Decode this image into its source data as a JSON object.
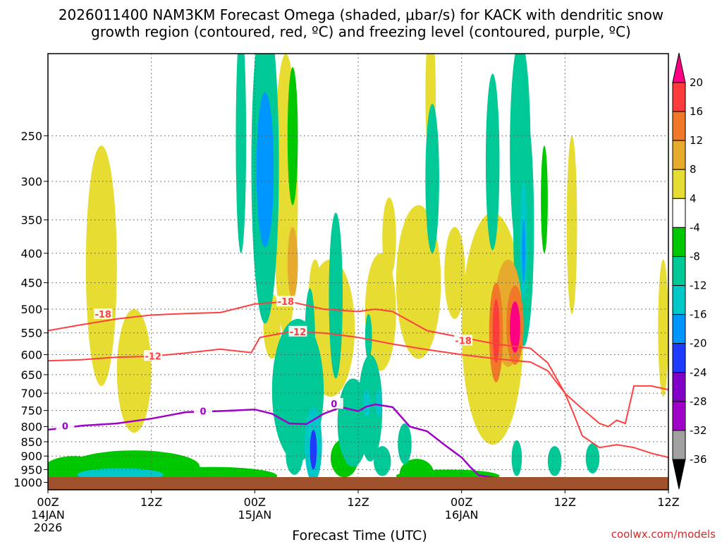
{
  "chart_data": {
    "type": "time-height cross section",
    "title_line1": "2026011400 NAM3KM Forecast Omega (shaded, μbar/s) for KACK with dendritic snow",
    "title_line2": "growth region (contoured, red, ºC) and freezing level (contoured, purple, ºC)",
    "xlabel": "Forecast Time (UTC)",
    "x_unit": "hours",
    "x_range": [
      0,
      36
    ],
    "y_unit": "hPa",
    "y_range": [
      1030,
      180
    ],
    "y_ticks": [
      "250",
      "300",
      "350",
      "400",
      "450",
      "500",
      "550",
      "600",
      "650",
      "700",
      "750",
      "800",
      "850",
      "900",
      "950",
      "1000"
    ],
    "x_ticks": [
      {
        "h": 0,
        "line1": "00Z",
        "line2": "14JAN",
        "line3": "2026"
      },
      {
        "h": 6,
        "line1": "12Z",
        "line2": "",
        "line3": ""
      },
      {
        "h": 12,
        "line1": "00Z",
        "line2": "15JAN",
        "line3": ""
      },
      {
        "h": 18,
        "line1": "12Z",
        "line2": "",
        "line3": ""
      },
      {
        "h": 24,
        "line1": "00Z",
        "line2": "16JAN",
        "line3": ""
      },
      {
        "h": 30,
        "line1": "12Z",
        "line2": "",
        "line3": ""
      }
    ],
    "colorbar": {
      "labels": [
        "20",
        "16",
        "12",
        "8",
        "4",
        "-4",
        "-8",
        "-12",
        "-16",
        "-20",
        "-24",
        "-28",
        "-32",
        "-36"
      ],
      "colors": [
        "#ff0080",
        "#ff3c3c",
        "#f07828",
        "#e6aa2d",
        "#e6dc32",
        "#ffffff",
        "#00c800",
        "#00c896",
        "#00c8c8",
        "#0096ff",
        "#1e3cff",
        "#8200c8",
        "#a000c8",
        "#a0a0a0",
        "#000000"
      ]
    },
    "contour_labels": {
      "dgz_minus18": "-18",
      "dgz_minus12": "-12",
      "freezing": "0"
    },
    "dgz_minus18": [
      [
        0,
        545
      ],
      [
        2,
        532
      ],
      [
        4,
        520
      ],
      [
        6,
        512
      ],
      [
        8,
        509
      ],
      [
        10,
        507
      ],
      [
        12,
        490
      ],
      [
        14,
        485
      ],
      [
        16,
        500
      ],
      [
        18,
        505
      ],
      [
        19,
        500
      ],
      [
        20,
        505
      ],
      [
        22,
        545
      ],
      [
        24,
        560
      ],
      [
        26,
        575
      ],
      [
        28,
        585
      ],
      [
        29,
        620
      ],
      [
        30,
        700
      ],
      [
        31,
        745
      ],
      [
        32,
        790
      ],
      [
        32.5,
        800
      ],
      [
        33,
        780
      ],
      [
        33.5,
        790
      ],
      [
        34,
        680
      ],
      [
        35,
        680
      ],
      [
        36,
        690
      ]
    ],
    "dgz_minus12": [
      [
        0,
        615
      ],
      [
        2,
        612
      ],
      [
        4,
        606
      ],
      [
        6,
        604
      ],
      [
        8,
        596
      ],
      [
        10,
        587
      ],
      [
        11.8,
        595
      ],
      [
        12.3,
        560
      ],
      [
        14,
        548
      ],
      [
        16,
        550
      ],
      [
        18,
        560
      ],
      [
        20,
        575
      ],
      [
        22,
        588
      ],
      [
        24,
        600
      ],
      [
        26,
        610
      ],
      [
        28,
        618
      ],
      [
        29,
        640
      ],
      [
        30,
        700
      ],
      [
        30.5,
        760
      ],
      [
        31,
        830
      ],
      [
        32,
        870
      ],
      [
        33,
        860
      ],
      [
        34,
        870
      ],
      [
        35,
        890
      ],
      [
        36,
        905
      ]
    ],
    "freezing_0c": [
      [
        0,
        810
      ],
      [
        2,
        797
      ],
      [
        4,
        790
      ],
      [
        6,
        775
      ],
      [
        8,
        755
      ],
      [
        10,
        752
      ],
      [
        12,
        747
      ],
      [
        13,
        760
      ],
      [
        14,
        790
      ],
      [
        15,
        792
      ],
      [
        16,
        760
      ],
      [
        17,
        740
      ],
      [
        18,
        752
      ],
      [
        18.5,
        738
      ],
      [
        19,
        732
      ],
      [
        20,
        740
      ],
      [
        21,
        800
      ],
      [
        22,
        815
      ],
      [
        23,
        860
      ],
      [
        24,
        905
      ],
      [
        24.5,
        940
      ],
      [
        25,
        972
      ],
      [
        27,
        992
      ]
    ],
    "omega_blobs": [
      {
        "h": 12.6,
        "p": 300,
        "dh": 0.8,
        "dp": 230,
        "v": -10
      },
      {
        "h": 12.6,
        "p": 300,
        "dh": 0.5,
        "dp": 90,
        "v": -17
      },
      {
        "h": 11.2,
        "p": 280,
        "dh": 0.3,
        "dp": 120,
        "v": -8
      },
      {
        "h": 13.8,
        "p": 370,
        "dh": 0.7,
        "dp": 190,
        "v": 5
      },
      {
        "h": 14.2,
        "p": 420,
        "dh": 0.3,
        "dp": 60,
        "v": 9
      },
      {
        "h": 14.2,
        "p": 260,
        "dh": 0.3,
        "dp": 70,
        "v": -6
      },
      {
        "h": 3.1,
        "p": 470,
        "dh": 0.9,
        "dp": 210,
        "v": 5
      },
      {
        "h": 5,
        "p": 660,
        "dh": 1,
        "dp": 160,
        "v": 5
      },
      {
        "h": 13,
        "p": 540,
        "dh": 0.5,
        "dp": 70,
        "v": 7
      },
      {
        "h": 15.5,
        "p": 500,
        "dh": 0.4,
        "dp": 90,
        "v": 6
      },
      {
        "h": 16.4,
        "p": 560,
        "dh": 1.4,
        "dp": 150,
        "v": 5
      },
      {
        "h": 19.3,
        "p": 520,
        "dh": 0.9,
        "dp": 120,
        "v": 6
      },
      {
        "h": 21.5,
        "p": 470,
        "dh": 1.3,
        "dp": 140,
        "v": 5
      },
      {
        "h": 23.6,
        "p": 440,
        "dh": 0.6,
        "dp": 80,
        "v": 5
      },
      {
        "h": 25.8,
        "p": 600,
        "dh": 1.8,
        "dp": 260,
        "v": 5
      },
      {
        "h": 26,
        "p": 560,
        "dh": 0.4,
        "dp": 110,
        "v": 14
      },
      {
        "h": 26,
        "p": 550,
        "dh": 0.2,
        "dp": 70,
        "v": 19
      },
      {
        "h": 26.7,
        "p": 520,
        "dh": 0.8,
        "dp": 110,
        "v": 9
      },
      {
        "h": 27.1,
        "p": 540,
        "dh": 0.5,
        "dp": 85,
        "v": 13
      },
      {
        "h": 27.1,
        "p": 540,
        "dh": 0.3,
        "dp": 55,
        "v": 20
      },
      {
        "h": 22.2,
        "p": 220,
        "dh": 0.3,
        "dp": 60,
        "v": 5
      },
      {
        "h": 26.1,
        "p": 620,
        "dh": 0.2,
        "dp": 20,
        "v": 14
      },
      {
        "h": 30.4,
        "p": 380,
        "dh": 0.3,
        "dp": 130,
        "v": 5
      },
      {
        "h": 19.8,
        "p": 380,
        "dh": 0.4,
        "dp": 60,
        "v": 5
      },
      {
        "h": 35.7,
        "p": 560,
        "dh": 0.3,
        "dp": 150,
        "v": 5
      },
      {
        "h": 14.5,
        "p": 720,
        "dh": 1.5,
        "dp": 200,
        "v": -8
      },
      {
        "h": 15.4,
        "p": 870,
        "dh": 0.5,
        "dp": 130,
        "v": -12
      },
      {
        "h": 15.4,
        "p": 880,
        "dh": 0.2,
        "dp": 70,
        "v": -20
      },
      {
        "h": 14.3,
        "p": 900,
        "dh": 0.5,
        "dp": 70,
        "v": -11
      },
      {
        "h": 15.2,
        "p": 580,
        "dh": 0.3,
        "dp": 120,
        "v": -8
      },
      {
        "h": 16.7,
        "p": 500,
        "dh": 0.4,
        "dp": 160,
        "v": -8
      },
      {
        "h": 17.7,
        "p": 800,
        "dh": 0.9,
        "dp": 140,
        "v": -8
      },
      {
        "h": 18.7,
        "p": 760,
        "dh": 0.7,
        "dp": 160,
        "v": -8
      },
      {
        "h": 18.5,
        "p": 730,
        "dh": 0.2,
        "dp": 40,
        "v": -13
      },
      {
        "h": 19.2,
        "p": 730,
        "dh": 0.2,
        "dp": 40,
        "v": -12
      },
      {
        "h": 20.7,
        "p": 860,
        "dh": 0.4,
        "dp": 70,
        "v": -8
      },
      {
        "h": 22.3,
        "p": 310,
        "dh": 0.4,
        "dp": 90,
        "v": -8
      },
      {
        "h": 22.1,
        "p": 340,
        "dh": 0.1,
        "dp": 40,
        "v": -11
      },
      {
        "h": 18.6,
        "p": 560,
        "dh": 0.2,
        "dp": 50,
        "v": -8
      },
      {
        "h": 21.4,
        "p": 970,
        "dh": 1,
        "dp": 60,
        "v": -6
      },
      {
        "h": 5,
        "p": 940,
        "dh": 3.8,
        "dp": 60,
        "v": -7
      },
      {
        "h": 4.2,
        "p": 970,
        "dh": 2.5,
        "dp": 25,
        "v": -13
      },
      {
        "h": 9.5,
        "p": 975,
        "dh": 3.8,
        "dp": 35,
        "v": -6
      },
      {
        "h": 1.5,
        "p": 955,
        "dh": 1.8,
        "dp": 55,
        "v": -6
      },
      {
        "h": 23.2,
        "p": 975,
        "dh": 3,
        "dp": 25,
        "v": -5
      },
      {
        "h": 25.8,
        "p": 295,
        "dh": 0.4,
        "dp": 100,
        "v": -8
      },
      {
        "h": 27.4,
        "p": 290,
        "dh": 0.6,
        "dp": 120,
        "v": -8
      },
      {
        "h": 27.6,
        "p": 400,
        "dh": 0.6,
        "dp": 180,
        "v": -8
      },
      {
        "h": 27.6,
        "p": 390,
        "dh": 0.2,
        "dp": 90,
        "v": -13
      },
      {
        "h": 27.6,
        "p": 400,
        "dh": 0.1,
        "dp": 50,
        "v": -18
      },
      {
        "h": 28.8,
        "p": 330,
        "dh": 0.2,
        "dp": 70,
        "v": -7
      },
      {
        "h": 27.2,
        "p": 910,
        "dh": 0.3,
        "dp": 65,
        "v": -8
      },
      {
        "h": 29.4,
        "p": 920,
        "dh": 0.4,
        "dp": 55,
        "v": -8
      },
      {
        "h": 31.6,
        "p": 910,
        "dh": 0.4,
        "dp": 55,
        "v": -8
      },
      {
        "h": 19.4,
        "p": 920,
        "dh": 0.5,
        "dp": 55,
        "v": -8
      },
      {
        "h": 17.2,
        "p": 910,
        "dh": 0.8,
        "dp": 70,
        "v": -7
      }
    ],
    "credit": "coolwx.com/models"
  }
}
